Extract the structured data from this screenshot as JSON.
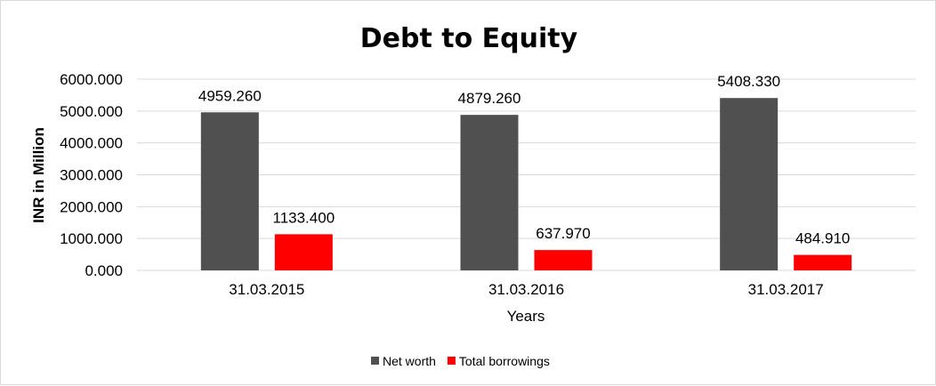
{
  "chart_data": {
    "type": "bar",
    "title": "Debt to Equity",
    "xlabel": "Years",
    "ylabel": "INR in Million",
    "categories": [
      "31.03.2015",
      "31.03.2016",
      "31.03.2017"
    ],
    "series": [
      {
        "name": "Net worth",
        "color": "#505050",
        "values": [
          4959.26,
          4879.26,
          5408.33
        ],
        "labels": [
          "4959.260",
          "4879.260",
          "5408.330"
        ]
      },
      {
        "name": "Total borrowings",
        "color": "#ff0000",
        "values": [
          1133.4,
          637.97,
          484.91
        ],
        "labels": [
          "1133.400",
          "637.970",
          "484.910"
        ]
      }
    ],
    "ylim": [
      0,
      6000
    ],
    "yticks": [
      "0.000",
      "1000.000",
      "2000.000",
      "3000.000",
      "4000.000",
      "5000.000",
      "6000.000"
    ],
    "grid": true,
    "legend": "bottom"
  }
}
